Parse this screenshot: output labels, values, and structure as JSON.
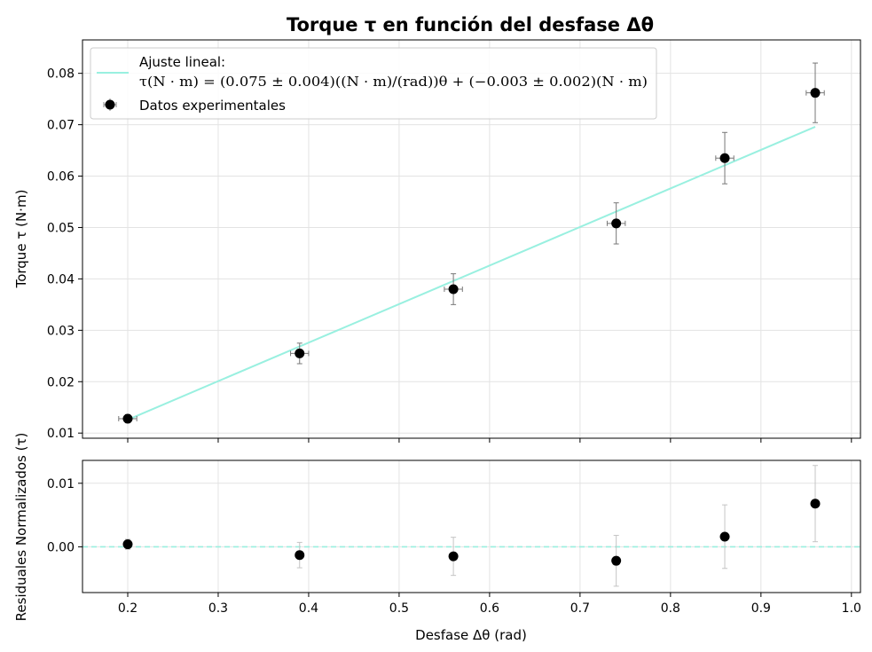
{
  "chart_data": [
    {
      "type": "scatter",
      "title": "Torque τ en función del desfase Δθ",
      "ylabel": "Torque τ (N·m)",
      "xlim": [
        0.15,
        1.01
      ],
      "ylim": [
        0.009,
        0.0865
      ],
      "xticks": [
        "0.2",
        "0.3",
        "0.4",
        "0.5",
        "0.6",
        "0.7",
        "0.8",
        "0.9",
        "1.0"
      ],
      "yticks": [
        "0.01",
        "0.02",
        "0.03",
        "0.04",
        "0.05",
        "0.06",
        "0.07",
        "0.08"
      ],
      "grid": true,
      "legend_position": "top-left",
      "legend": {
        "fit_label_line1": "Ajuste lineal:",
        "fit_label_line2": "τ(N · m) = (0.075 ± 0.004)((N · m)/(rad))θ + (−0.003 ± 0.002)(N · m)",
        "data_label": "Datos experimentales"
      },
      "series": [
        {
          "name": "Datos experimentales",
          "x": [
            0.2,
            0.39,
            0.56,
            0.74,
            0.86,
            0.96
          ],
          "y": [
            0.0128,
            0.0255,
            0.038,
            0.0508,
            0.0635,
            0.0762
          ],
          "xerr": [
            0.01,
            0.01,
            0.01,
            0.01,
            0.01,
            0.01
          ],
          "yerr": [
            0.0008,
            0.002,
            0.003,
            0.004,
            0.005,
            0.0058
          ],
          "color": "#000000"
        },
        {
          "name": "Ajuste lineal",
          "x": [
            0.2,
            0.96
          ],
          "y": [
            0.0126,
            0.0696
          ],
          "color": "#99f0e0"
        }
      ]
    },
    {
      "type": "scatter",
      "xlabel": "Desfase Δθ (rad)",
      "ylabel": "Residuales Normalizados (τ)",
      "xlim": [
        0.15,
        1.01
      ],
      "ylim": [
        -0.0072,
        0.0136
      ],
      "xticks": [
        "0.2",
        "0.3",
        "0.4",
        "0.5",
        "0.6",
        "0.7",
        "0.8",
        "0.9",
        "1.0"
      ],
      "yticks": [
        "0.00",
        "0.01"
      ],
      "grid": true,
      "reference_line": {
        "y": 0,
        "style": "dashed",
        "color": "#99f0e0"
      },
      "series": [
        {
          "x": [
            0.2,
            0.39,
            0.56,
            0.74,
            0.86,
            0.96
          ],
          "y": [
            0.0004,
            -0.0013,
            -0.0015,
            -0.0022,
            0.0016,
            0.0068
          ],
          "yerr": [
            0.0008,
            0.002,
            0.003,
            0.004,
            0.005,
            0.006
          ],
          "color": "#000000"
        }
      ]
    }
  ]
}
